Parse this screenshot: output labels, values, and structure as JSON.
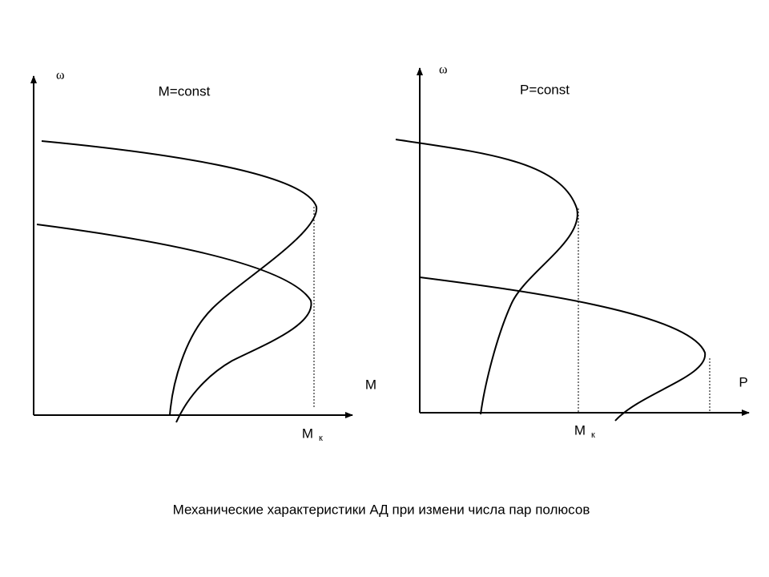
{
  "left_panel": {
    "y_axis_label": "ω",
    "condition": "M=const",
    "x_axis_label": "M",
    "critical_label": {
      "main": "M",
      "subscript": "к"
    }
  },
  "right_panel": {
    "y_axis_label": "ω",
    "condition": "P=const",
    "x_axis_label": "P",
    "critical_label": {
      "main": "M",
      "subscript": "к"
    }
  },
  "caption": "Механические характеристики АД при измени числа пар полюсов"
}
